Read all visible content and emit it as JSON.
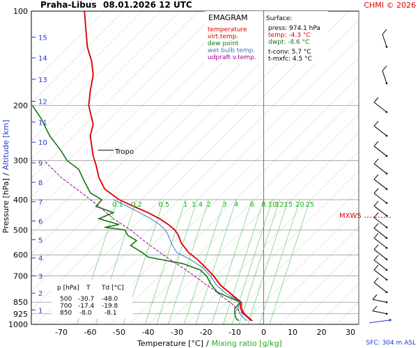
{
  "header": {
    "station": "Praha-Libus",
    "time": "08.01.2026 12 UTC",
    "credit": "CHMI © 2026"
  },
  "legend": {
    "title": "EMAGRAM",
    "items": [
      {
        "label": "temperature",
        "color": "#dd0000"
      },
      {
        "label": "virt.temp.",
        "color": "#dd0000"
      },
      {
        "label": "dew point",
        "color": "#117711"
      },
      {
        "label": "wet bulb temp.",
        "color": "#3377cc"
      },
      {
        "label": "udpraft v.temp.",
        "color": "#990099"
      }
    ]
  },
  "surface": {
    "title": "Surface:",
    "press": "press: 974.1 hPa",
    "temp": "temp: -4.3 °C",
    "dwpt": "dwpt: -8.6 °C",
    "tconv": "t-conv: 5.7 °C",
    "tmxfc": "t-mxfc: 4.5 °C"
  },
  "table": {
    "header": [
      "p [hPa]",
      "T",
      "Td [°C]"
    ],
    "rows": [
      [
        "500",
        "-30.7",
        "-48.0"
      ],
      [
        "700",
        "-17.4",
        "-19.8"
      ],
      [
        "850",
        "-8.0",
        "-8.1"
      ]
    ]
  },
  "labels": {
    "tropo": "Tropo",
    "mxws": "MXWS",
    "sfc": "SFC: 304 m ASL",
    "ylabel_pressure": "Pressure [hPa]",
    "ylabel_sep": "/",
    "ylabel_altitude": "Altitude [km]",
    "xlabel_temp": "Temperature [°C]",
    "xlabel_sep": "/",
    "xlabel_mixing": "Mixing ratio [g/kg]"
  },
  "chart_data": {
    "type": "line",
    "x_axis": "temperature_c",
    "y_axis": "pressure_hpa",
    "y_scale": "log",
    "xlim": [
      -80,
      35
    ],
    "ylim": [
      1000,
      100
    ],
    "xticks": [
      -70,
      -60,
      -50,
      -40,
      -30,
      -20,
      -10,
      0,
      10,
      20,
      30
    ],
    "yticks": [
      100,
      200,
      300,
      400,
      500,
      600,
      700,
      850,
      925,
      1000
    ],
    "altitude_ticks_km": [
      {
        "km": 1,
        "p": 900
      },
      {
        "km": 2,
        "p": 795
      },
      {
        "km": 3,
        "p": 700
      },
      {
        "km": 4,
        "p": 614
      },
      {
        "km": 5,
        "p": 537
      },
      {
        "km": 6,
        "p": 468
      },
      {
        "km": 7,
        "p": 406
      },
      {
        "km": 8,
        "p": 352
      },
      {
        "km": 9,
        "p": 305
      },
      {
        "km": 10,
        "p": 262
      },
      {
        "km": 11,
        "p": 226
      },
      {
        "km": 12,
        "p": 194
      },
      {
        "km": 13,
        "p": 165
      },
      {
        "km": 14,
        "p": 141
      },
      {
        "km": 15,
        "p": 121
      }
    ],
    "mixing_ratio_labels": [
      {
        "label": "0.1",
        "t": -50.5
      },
      {
        "label": "0.2",
        "t": -44
      },
      {
        "label": "0.5",
        "t": -34.5
      },
      {
        "label": "1",
        "t": -27
      },
      {
        "label": "1.4",
        "t": -23
      },
      {
        "label": "2",
        "t": -19
      },
      {
        "label": "3",
        "t": -13.5
      },
      {
        "label": "4",
        "t": -9.5
      },
      {
        "label": "6",
        "t": -4
      },
      {
        "label": "8",
        "t": 0
      },
      {
        "label": "10",
        "t": 3
      },
      {
        "label": "12",
        "t": 5.5
      },
      {
        "label": "15",
        "t": 8.5
      },
      {
        "label": "20",
        "t": 12.5
      },
      {
        "label": "25",
        "t": 16
      }
    ],
    "tropopause_p": 278,
    "mxws_p": 455,
    "series": [
      {
        "name": "temperature",
        "color": "#dd0000",
        "points": [
          [
            -4.3,
            974
          ],
          [
            -5,
            960
          ],
          [
            -7,
            925
          ],
          [
            -8,
            890
          ],
          [
            -8,
            850
          ],
          [
            -10,
            820
          ],
          [
            -12,
            790
          ],
          [
            -15,
            750
          ],
          [
            -17.4,
            700
          ],
          [
            -20,
            660
          ],
          [
            -23,
            620
          ],
          [
            -26,
            590
          ],
          [
            -28.5,
            550
          ],
          [
            -29.5,
            520
          ],
          [
            -30.7,
            500
          ],
          [
            -33,
            480
          ],
          [
            -36,
            460
          ],
          [
            -40,
            440
          ],
          [
            -45,
            420
          ],
          [
            -50,
            400
          ],
          [
            -55,
            370
          ],
          [
            -57,
            340
          ],
          [
            -58,
            310
          ],
          [
            -59,
            290
          ],
          [
            -59.5,
            270
          ],
          [
            -60,
            250
          ],
          [
            -59,
            230
          ],
          [
            -60,
            210
          ],
          [
            -60.5,
            200
          ],
          [
            -60,
            180
          ],
          [
            -59,
            160
          ],
          [
            -59.5,
            145
          ],
          [
            -61,
            130
          ],
          [
            -61.5,
            115
          ],
          [
            -62,
            100
          ]
        ]
      },
      {
        "name": "virt.temp.",
        "color": "#dd0000",
        "points": [
          [
            -3.8,
            974
          ],
          [
            -4.6,
            960
          ],
          [
            -6.6,
            925
          ],
          [
            -7.6,
            890
          ],
          [
            -7.6,
            850
          ],
          [
            -9.7,
            820
          ],
          [
            -11.8,
            790
          ],
          [
            -14.8,
            750
          ],
          [
            -17.2,
            700
          ],
          [
            -19.9,
            660
          ],
          [
            -22.9,
            620
          ],
          [
            -25.9,
            590
          ],
          [
            -28.4,
            550
          ],
          [
            -29.4,
            520
          ],
          [
            -30.6,
            500
          ],
          [
            -32.9,
            480
          ],
          [
            -35.9,
            460
          ],
          [
            -39.9,
            440
          ],
          [
            -44.9,
            420
          ],
          [
            -49.9,
            400
          ],
          [
            -54.9,
            370
          ],
          [
            -56.9,
            340
          ],
          [
            -57.9,
            310
          ],
          [
            -58.9,
            290
          ],
          [
            -59.4,
            270
          ],
          [
            -59.9,
            250
          ],
          [
            -58.9,
            230
          ],
          [
            -59.9,
            210
          ],
          [
            -60.4,
            200
          ],
          [
            -59.9,
            180
          ],
          [
            -58.9,
            160
          ],
          [
            -59.4,
            145
          ],
          [
            -60.9,
            130
          ],
          [
            -61.4,
            115
          ],
          [
            -61.9,
            100
          ]
        ]
      },
      {
        "name": "dew point",
        "color": "#117711",
        "points": [
          [
            -8.6,
            974
          ],
          [
            -9.5,
            960
          ],
          [
            -10,
            925
          ],
          [
            -10,
            890
          ],
          [
            -8.1,
            850
          ],
          [
            -12,
            820
          ],
          [
            -16,
            790
          ],
          [
            -18,
            750
          ],
          [
            -19.8,
            700
          ],
          [
            -22,
            670
          ],
          [
            -28,
            640
          ],
          [
            -40,
            610
          ],
          [
            -42,
            590
          ],
          [
            -46,
            560
          ],
          [
            -44,
            540
          ],
          [
            -47,
            520
          ],
          [
            -48,
            500
          ],
          [
            -55,
            490
          ],
          [
            -50,
            480
          ],
          [
            -57,
            460
          ],
          [
            -52,
            440
          ],
          [
            -58,
            420
          ],
          [
            -56,
            400
          ],
          [
            -60,
            380
          ],
          [
            -62,
            350
          ],
          [
            -64,
            320
          ],
          [
            -68,
            300
          ],
          [
            -70,
            280
          ],
          [
            -74,
            250
          ],
          [
            -77,
            220
          ],
          [
            -80,
            200
          ]
        ]
      },
      {
        "name": "wet bulb temp.",
        "color": "#3377cc",
        "points": [
          [
            -5.8,
            974
          ],
          [
            -6.6,
            960
          ],
          [
            -8.3,
            925
          ],
          [
            -8.9,
            890
          ],
          [
            -8.05,
            850
          ],
          [
            -10.8,
            820
          ],
          [
            -13.6,
            790
          ],
          [
            -16.3,
            750
          ],
          [
            -18.4,
            700
          ],
          [
            -21,
            660
          ],
          [
            -25.5,
            620
          ],
          [
            -30,
            590
          ],
          [
            -32,
            550
          ],
          [
            -33,
            520
          ],
          [
            -34,
            500
          ],
          [
            -36,
            480
          ],
          [
            -39,
            460
          ],
          [
            -43,
            440
          ],
          [
            -47,
            420
          ],
          [
            -52,
            400
          ]
        ]
      },
      {
        "name": "udpraft v.temp.",
        "color": "#990099",
        "points": [
          [
            -3.8,
            974
          ],
          [
            -6,
            940
          ],
          [
            -8.8,
            900
          ],
          [
            -11,
            860
          ],
          [
            -14,
            820
          ],
          [
            -17,
            780
          ],
          [
            -20.5,
            740
          ],
          [
            -24,
            700
          ],
          [
            -28,
            660
          ],
          [
            -32.5,
            620
          ],
          [
            -37,
            580
          ],
          [
            -41.5,
            540
          ],
          [
            -46,
            500
          ],
          [
            -52,
            460
          ],
          [
            -57,
            420
          ],
          [
            -63,
            380
          ],
          [
            -70,
            340
          ],
          [
            -76,
            300
          ]
        ]
      }
    ]
  }
}
